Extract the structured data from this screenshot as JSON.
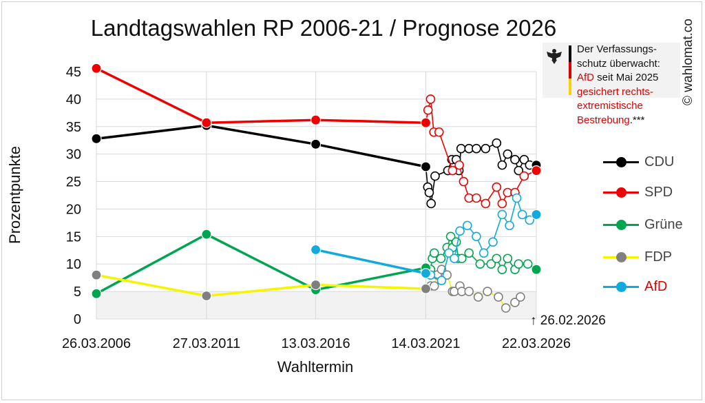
{
  "title": "Landtagswahlen RP 2006-21 / Prognose 2026",
  "watermark": "© wahlomat.co",
  "note": {
    "line1": "Der Verfassungs-",
    "line2": "schutz überwacht:",
    "line3_red": "AfD",
    "line3_rest": " seit Mai 2025",
    "line4": "gesichert rechts-",
    "line5": "extremistische",
    "line6_red": "Bestrebung",
    "line6_rest": ".***",
    "flag_colors": [
      "#000000",
      "#dd0000",
      "#ffce00"
    ]
  },
  "date_note": "↑ 26.02.2026",
  "colors": {
    "CDU": "#000000",
    "SPD": "#ee0000",
    "Grüne": "#00a550",
    "FDP": "#f5f500",
    "AfD": "#11aadd",
    "FDP_marker": "#808080",
    "grid": "#d9d9d9",
    "shade": "#f2f2f2"
  },
  "chart_data": {
    "type": "line",
    "title": "Landtagswahlen RP 2006-21 / Prognose 2026",
    "xlabel": "Wahltermin",
    "ylabel": "Prozentpunkte",
    "xlim": [
      "2006-03-26",
      "2026-03-22"
    ],
    "ylim": [
      0,
      45
    ],
    "yticks": [
      0,
      5,
      10,
      15,
      20,
      25,
      30,
      35,
      40,
      45
    ],
    "xticks": [
      "2006-03-26",
      "2011-03-27",
      "2016-03-13",
      "2021-03-14",
      "2026-03-22"
    ],
    "xtick_labels": [
      "26.03.2006",
      "27.03.2011",
      "13.03.2016",
      "14.03.2021",
      "22.03.2026"
    ],
    "grid": true,
    "legend": "right",
    "shaded_band": [
      0,
      5
    ],
    "series": [
      {
        "name": "CDU",
        "elections": [
          [
            "2006-03-26",
            32.8
          ],
          [
            "2011-03-27",
            35.2
          ],
          [
            "2016-03-13",
            31.8
          ],
          [
            "2021-03-14",
            27.7
          ]
        ],
        "polls": [
          [
            "2021-04-15",
            24
          ],
          [
            "2021-05-10",
            23
          ],
          [
            "2021-06-10",
            21
          ],
          [
            "2021-08-15",
            26
          ],
          [
            "2022-03-15",
            27
          ],
          [
            "2022-05-20",
            29
          ],
          [
            "2022-08-01",
            29
          ],
          [
            "2022-09-15",
            27
          ],
          [
            "2022-10-20",
            31
          ],
          [
            "2023-03-01",
            31
          ],
          [
            "2023-07-01",
            31
          ],
          [
            "2023-12-01",
            31
          ],
          [
            "2024-06-01",
            32
          ],
          [
            "2024-09-01",
            28
          ],
          [
            "2024-12-01",
            30
          ],
          [
            "2025-04-01",
            29
          ],
          [
            "2025-06-01",
            27
          ],
          [
            "2025-09-01",
            29
          ],
          [
            "2025-12-01",
            28
          ]
        ],
        "forecast": [
          "2026-03-22",
          28
        ]
      },
      {
        "name": "SPD",
        "elections": [
          [
            "2006-03-26",
            45.6
          ],
          [
            "2011-03-27",
            35.7
          ],
          [
            "2016-03-13",
            36.2
          ],
          [
            "2021-03-14",
            35.7
          ]
        ],
        "polls": [
          [
            "2021-04-20",
            38
          ],
          [
            "2021-06-01",
            40
          ],
          [
            "2021-07-25",
            34
          ],
          [
            "2021-10-20",
            34
          ],
          [
            "2022-06-01",
            27
          ],
          [
            "2022-09-20",
            28
          ],
          [
            "2022-12-01",
            25
          ],
          [
            "2023-03-01",
            22
          ],
          [
            "2023-07-01",
            22
          ],
          [
            "2023-12-01",
            21
          ],
          [
            "2024-06-01",
            24
          ],
          [
            "2024-09-01",
            21
          ],
          [
            "2024-12-01",
            23
          ],
          [
            "2025-04-01",
            23
          ],
          [
            "2025-09-01",
            26
          ]
        ],
        "forecast": [
          "2026-03-22",
          27
        ]
      },
      {
        "name": "Grüne",
        "elections": [
          [
            "2006-03-26",
            4.6
          ],
          [
            "2011-03-27",
            15.4
          ],
          [
            "2016-03-13",
            5.3
          ],
          [
            "2021-03-14",
            9.3
          ]
        ],
        "polls": [
          [
            "2021-06-01",
            9
          ],
          [
            "2021-07-01",
            11
          ],
          [
            "2021-08-01",
            12
          ],
          [
            "2021-11-20",
            11
          ],
          [
            "2022-03-01",
            13
          ],
          [
            "2022-05-01",
            15
          ],
          [
            "2022-06-01",
            13
          ],
          [
            "2022-08-01",
            14
          ],
          [
            "2022-09-01",
            11
          ],
          [
            "2022-11-01",
            11
          ],
          [
            "2023-03-01",
            12
          ],
          [
            "2023-09-01",
            10
          ],
          [
            "2024-03-01",
            10
          ],
          [
            "2024-06-01",
            11
          ],
          [
            "2024-09-01",
            9
          ],
          [
            "2024-12-01",
            11
          ],
          [
            "2025-04-01",
            9
          ],
          [
            "2025-06-01",
            10
          ],
          [
            "2025-11-01",
            10
          ]
        ],
        "forecast": [
          "2026-03-22",
          9
        ]
      },
      {
        "name": "FDP",
        "elections": [
          [
            "2006-03-26",
            8.0
          ],
          [
            "2011-03-27",
            4.2
          ],
          [
            "2016-03-13",
            6.2
          ],
          [
            "2021-03-14",
            5.5
          ]
        ],
        "polls": [
          [
            "2021-06-01",
            6
          ],
          [
            "2021-08-01",
            6
          ],
          [
            "2021-09-20",
            8
          ],
          [
            "2021-12-01",
            9
          ],
          [
            "2022-03-01",
            8
          ],
          [
            "2022-06-01",
            5
          ],
          [
            "2022-07-01",
            5
          ],
          [
            "2022-10-01",
            6
          ],
          [
            "2022-11-01",
            5
          ],
          [
            "2023-03-01",
            5
          ],
          [
            "2023-08-01",
            4
          ],
          [
            "2024-01-01",
            5
          ],
          [
            "2024-07-01",
            4
          ],
          [
            "2024-11-01",
            2
          ],
          [
            "2025-04-01",
            3
          ],
          [
            "2025-07-01",
            4
          ]
        ],
        "forecast": null
      },
      {
        "name": "AfD",
        "elections": [
          [
            "2016-03-13",
            12.6
          ],
          [
            "2021-03-14",
            8.3
          ]
        ],
        "polls": [
          [
            "2021-06-01",
            8
          ],
          [
            "2021-12-01",
            7
          ],
          [
            "2022-04-01",
            12
          ],
          [
            "2022-07-01",
            11
          ],
          [
            "2022-10-01",
            16
          ],
          [
            "2023-02-01",
            17
          ],
          [
            "2023-07-01",
            15
          ],
          [
            "2023-11-01",
            12
          ],
          [
            "2024-04-01",
            14
          ],
          [
            "2024-09-01",
            19
          ],
          [
            "2025-01-01",
            17
          ],
          [
            "2025-05-01",
            22
          ],
          [
            "2025-08-01",
            19
          ],
          [
            "2025-12-01",
            18
          ]
        ],
        "forecast": [
          "2026-03-22",
          19
        ]
      }
    ]
  }
}
